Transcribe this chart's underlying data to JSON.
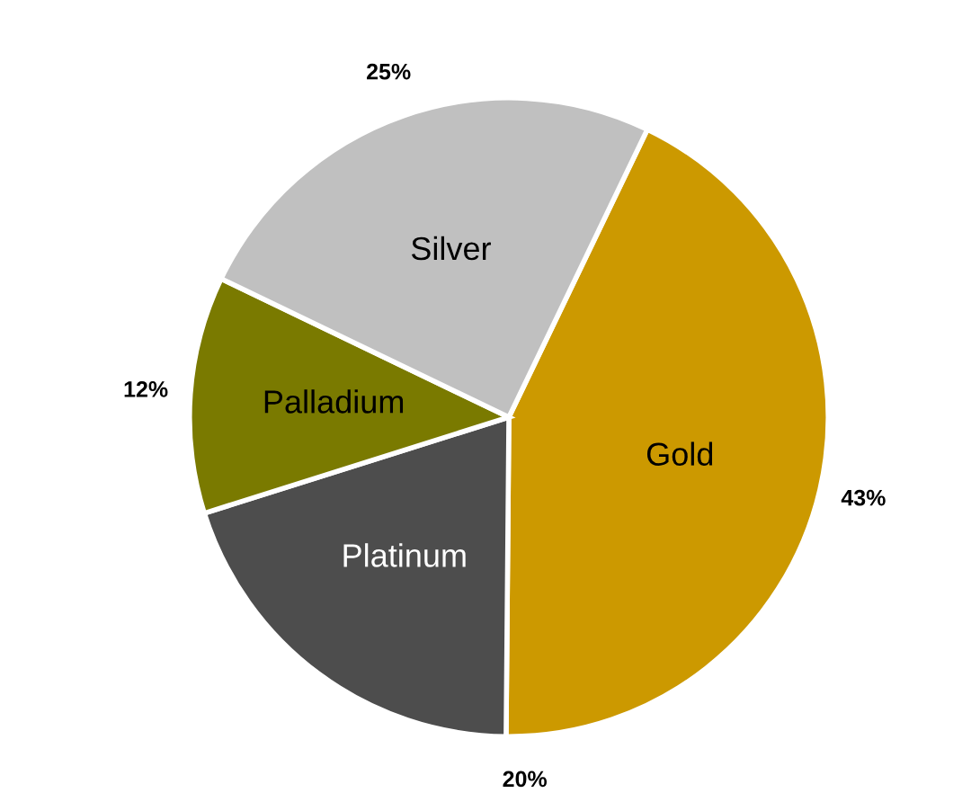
{
  "chart_data": {
    "type": "pie",
    "categories": [
      "Gold",
      "Platinum",
      "Palladium",
      "Silver"
    ],
    "values": [
      43,
      20,
      12,
      25
    ],
    "colors": [
      "#cc9900",
      "#4d4d4d",
      "#7a7a00",
      "#c0c0c0"
    ],
    "value_labels": [
      "43%",
      "20%",
      "12%",
      "25%"
    ]
  }
}
